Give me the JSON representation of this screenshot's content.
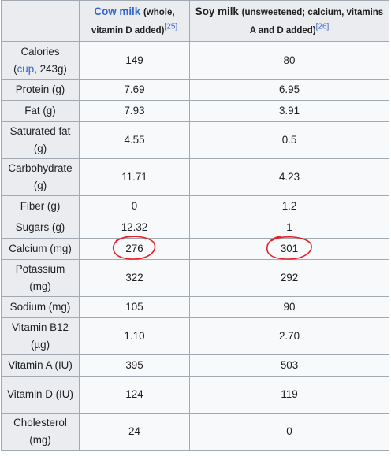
{
  "table": {
    "header": {
      "col1_main": "Cow milk",
      "col1_sub": "(whole, vitamin D added)",
      "col1_ref": "[25]",
      "col2_main": "Soy milk",
      "col2_sub": "(unsweetened; calcium, vitamins A and D added)",
      "col2_ref": "[26]"
    },
    "calories_label_pre": "Calories",
    "calories_label_open": "(",
    "calories_label_link": "cup",
    "calories_label_post": ", 243g)",
    "rows": [
      {
        "label": "Calories",
        "cow": "149",
        "soy": "80"
      },
      {
        "label": "Protein (g)",
        "cow": "7.69",
        "soy": "6.95"
      },
      {
        "label": "Fat (g)",
        "cow": "7.93",
        "soy": "3.91"
      },
      {
        "label": "Saturated fat (g)",
        "cow": "4.55",
        "soy": "0.5"
      },
      {
        "label": "Carbohydrate (g)",
        "cow": "11.71",
        "soy": "4.23"
      },
      {
        "label": "Fiber (g)",
        "cow": "0",
        "soy": "1.2"
      },
      {
        "label": "Sugars (g)",
        "cow": "12.32",
        "soy": "1"
      },
      {
        "label": "Calcium (mg)",
        "cow": "276",
        "soy": "301"
      },
      {
        "label": "Potassium (mg)",
        "cow": "322",
        "soy": "292"
      },
      {
        "label": "Sodium (mg)",
        "cow": "105",
        "soy": "90"
      },
      {
        "label": "Vitamin B12 (µg)",
        "cow": "1.10",
        "soy": "2.70"
      },
      {
        "label": "Vitamin A (IU)",
        "cow": "395",
        "soy": "503"
      },
      {
        "label": "Vitamin D (IU)",
        "cow": "124",
        "soy": "119"
      },
      {
        "label": "Cholesterol (mg)",
        "cow": "24",
        "soy": "0"
      }
    ]
  },
  "colors": {
    "link": "#3366cc",
    "header_bg": "#eaecf0",
    "cell_bg": "#f8f9fa",
    "border": "#a2a9b1",
    "annotation": "#e8202a"
  }
}
